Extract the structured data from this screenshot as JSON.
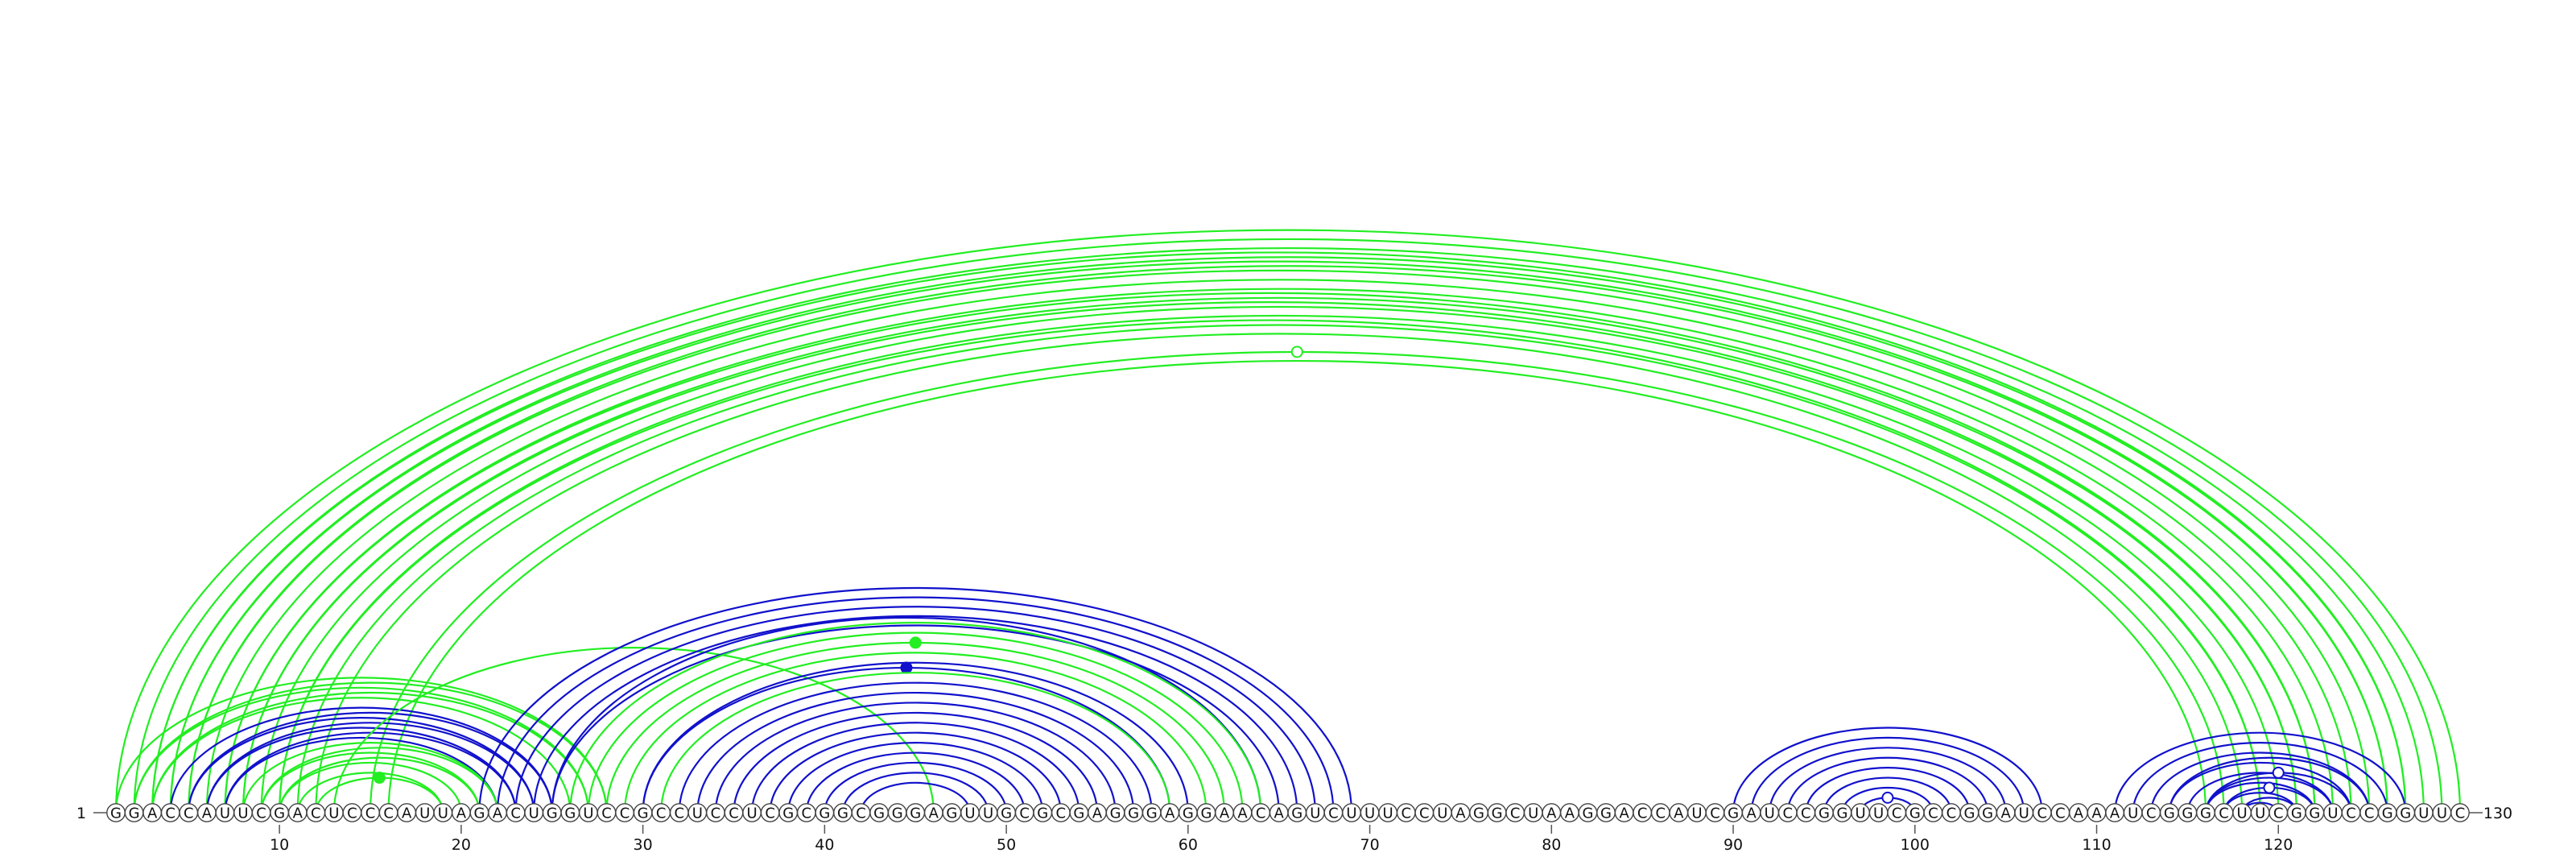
{
  "sequence": {
    "residues": "GGACCAUUCGACUCCCAUUAGACUGGUCCGCCUCCUCGCGGCGGGAGUUGCGCGAGGGAGGAACAGUCUUUCCUAGGCUAAGGACCAUCGAUCCGGUUCGCCGGAUCCAAAUCGGGCUUCGGUCCGGUUC",
    "start_label": "1",
    "end_label": "130"
  },
  "axis": {
    "ticks": [
      "10",
      "20",
      "30",
      "40",
      "50",
      "60",
      "70",
      "80",
      "90",
      "100",
      "110",
      "120"
    ]
  },
  "colors": {
    "green": "#22ee22",
    "blue": "#1111cc"
  },
  "arcs": [
    {
      "i": 1,
      "j": 130,
      "color": "green"
    },
    {
      "i": 2,
      "j": 129,
      "color": "green"
    },
    {
      "i": 3,
      "j": 128,
      "color": "green"
    },
    {
      "i": 3,
      "j": 127,
      "color": "green"
    },
    {
      "i": 4,
      "j": 127,
      "color": "green"
    },
    {
      "i": 4,
      "j": 126,
      "color": "green"
    },
    {
      "i": 5,
      "j": 126,
      "color": "green"
    },
    {
      "i": 5,
      "j": 125,
      "color": "green"
    },
    {
      "i": 6,
      "j": 124,
      "color": "green"
    },
    {
      "i": 7,
      "j": 123,
      "color": "green"
    },
    {
      "i": 7,
      "j": 122,
      "color": "green"
    },
    {
      "i": 8,
      "j": 122,
      "color": "green"
    },
    {
      "i": 8,
      "j": 121,
      "color": "green"
    },
    {
      "i": 9,
      "j": 121,
      "color": "green"
    },
    {
      "i": 10,
      "j": 120,
      "color": "green"
    },
    {
      "i": 10,
      "j": 119,
      "color": "green"
    },
    {
      "i": 11,
      "j": 119,
      "color": "green"
    },
    {
      "i": 12,
      "j": 118,
      "color": "green"
    },
    {
      "i": 15,
      "j": 117,
      "color": "green",
      "marker": "open"
    },
    {
      "i": 16,
      "j": 116,
      "color": "green"
    },
    {
      "i": 1,
      "j": 28,
      "color": "green"
    },
    {
      "i": 2,
      "j": 28,
      "color": "green"
    },
    {
      "i": 2,
      "j": 27,
      "color": "green"
    },
    {
      "i": 3,
      "j": 27,
      "color": "green"
    },
    {
      "i": 3,
      "j": 26,
      "color": "green"
    },
    {
      "i": 4,
      "j": 25,
      "color": "blue"
    },
    {
      "i": 5,
      "j": 25,
      "color": "blue"
    },
    {
      "i": 5,
      "j": 24,
      "color": "blue"
    },
    {
      "i": 6,
      "j": 24,
      "color": "blue"
    },
    {
      "i": 6,
      "j": 23,
      "color": "blue"
    },
    {
      "i": 7,
      "j": 23,
      "color": "blue"
    },
    {
      "i": 7,
      "j": 22,
      "color": "blue"
    },
    {
      "i": 8,
      "j": 22,
      "color": "green"
    },
    {
      "i": 9,
      "j": 22,
      "color": "green"
    },
    {
      "i": 9,
      "j": 21,
      "color": "green"
    },
    {
      "i": 10,
      "j": 21,
      "color": "green"
    },
    {
      "i": 10,
      "j": 20,
      "color": "green"
    },
    {
      "i": 11,
      "j": 19,
      "color": "green"
    },
    {
      "i": 12,
      "j": 19,
      "color": "green",
      "marker": "filled"
    },
    {
      "i": 13,
      "j": 46,
      "color": "green"
    },
    {
      "i": 21,
      "j": 69,
      "color": "blue"
    },
    {
      "i": 22,
      "j": 68,
      "color": "blue"
    },
    {
      "i": 23,
      "j": 67,
      "color": "blue"
    },
    {
      "i": 24,
      "j": 66,
      "color": "blue"
    },
    {
      "i": 25,
      "j": 65,
      "color": "blue"
    },
    {
      "i": 25,
      "j": 64,
      "color": "blue"
    },
    {
      "i": 26,
      "j": 64,
      "color": "green"
    },
    {
      "i": 27,
      "j": 63,
      "color": "green"
    },
    {
      "i": 28,
      "j": 62,
      "color": "green",
      "marker": "filled"
    },
    {
      "i": 29,
      "j": 61,
      "color": "green"
    },
    {
      "i": 30,
      "j": 60,
      "color": "blue"
    },
    {
      "i": 30,
      "j": 59,
      "color": "blue",
      "marker": "filled"
    },
    {
      "i": 31,
      "j": 59,
      "color": "green"
    },
    {
      "i": 32,
      "j": 58,
      "color": "blue"
    },
    {
      "i": 33,
      "j": 57,
      "color": "blue"
    },
    {
      "i": 34,
      "j": 56,
      "color": "blue"
    },
    {
      "i": 35,
      "j": 55,
      "color": "blue"
    },
    {
      "i": 36,
      "j": 54,
      "color": "blue"
    },
    {
      "i": 37,
      "j": 53,
      "color": "blue"
    },
    {
      "i": 38,
      "j": 52,
      "color": "blue"
    },
    {
      "i": 39,
      "j": 51,
      "color": "blue"
    },
    {
      "i": 40,
      "j": 50,
      "color": "blue"
    },
    {
      "i": 41,
      "j": 49,
      "color": "blue"
    },
    {
      "i": 42,
      "j": 48,
      "color": "blue"
    },
    {
      "i": 90,
      "j": 107,
      "color": "blue"
    },
    {
      "i": 91,
      "j": 106,
      "color": "blue"
    },
    {
      "i": 92,
      "j": 105,
      "color": "blue"
    },
    {
      "i": 93,
      "j": 104,
      "color": "blue"
    },
    {
      "i": 94,
      "j": 103,
      "color": "blue"
    },
    {
      "i": 95,
      "j": 102,
      "color": "blue"
    },
    {
      "i": 96,
      "j": 101,
      "color": "blue"
    },
    {
      "i": 97,
      "j": 100,
      "color": "blue",
      "marker": "open"
    },
    {
      "i": 111,
      "j": 127,
      "color": "blue"
    },
    {
      "i": 112,
      "j": 126,
      "color": "blue"
    },
    {
      "i": 113,
      "j": 125,
      "color": "blue"
    },
    {
      "i": 114,
      "j": 125,
      "color": "blue"
    },
    {
      "i": 114,
      "j": 124,
      "color": "blue"
    },
    {
      "i": 115,
      "j": 123,
      "color": "blue"
    },
    {
      "i": 116,
      "j": 123,
      "color": "blue"
    },
    {
      "i": 116,
      "j": 122,
      "color": "blue"
    },
    {
      "i": 117,
      "j": 121,
      "color": "blue"
    },
    {
      "i": 118,
      "j": 121,
      "color": "blue"
    },
    {
      "i": 118,
      "j": 120,
      "color": "blue"
    },
    {
      "i": 117,
      "j": 122,
      "color": "blue",
      "marker": "open"
    },
    {
      "i": 116,
      "j": 124,
      "color": "blue",
      "marker": "open"
    }
  ]
}
